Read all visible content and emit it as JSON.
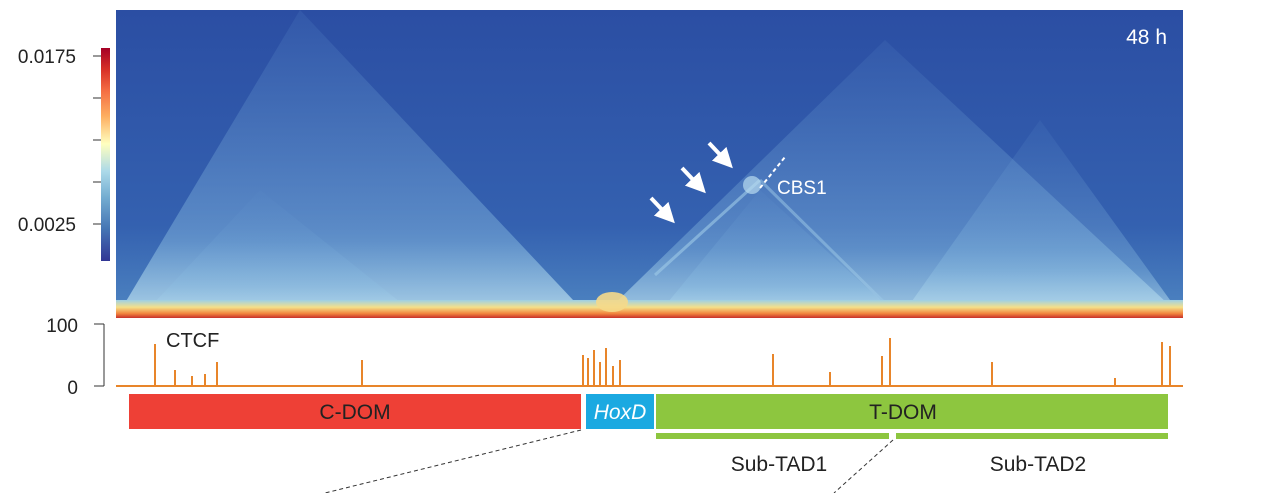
{
  "colorbar": {
    "max_label": "0.0175",
    "min_label": "0.0025",
    "colors": [
      "#313695",
      "#4575b4",
      "#74add1",
      "#abd9e9",
      "#ffffbf",
      "#fdae61",
      "#f46d43",
      "#d73027",
      "#a50026"
    ]
  },
  "heatmap": {
    "timepoint": "48 h",
    "cbs_label": "CBS1",
    "background_color": "#2f55a8",
    "arrow_count": 3
  },
  "ctcf": {
    "label": "CTCF",
    "ytick_max": "100",
    "ytick_min": "0",
    "color": "#e8852a"
  },
  "domains": {
    "c_dom": {
      "label": "C-DOM",
      "color": "#ee4036"
    },
    "hoxd": {
      "label": "HoxD",
      "color": "#1ba9e1"
    },
    "t_dom": {
      "label": "T-DOM",
      "color": "#8dc63f"
    },
    "sub_tad1": {
      "label": "Sub-TAD1",
      "color": "#8dc63f"
    },
    "sub_tad2": {
      "label": "Sub-TAD2",
      "color": "#8dc63f"
    }
  }
}
